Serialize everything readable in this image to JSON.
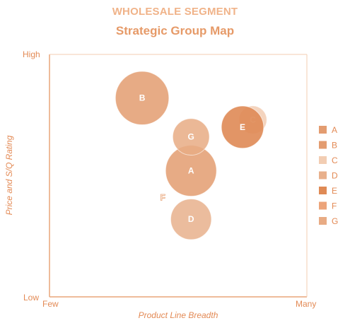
{
  "header": {
    "title": "WHOLESALE SEGMENT",
    "subtitle": "Strategic Group Map"
  },
  "chart_data": {
    "type": "scatter",
    "title": "Strategic Group Map",
    "xlabel": "Product Line Breadth",
    "ylabel": "Price and S/Q Rating",
    "x_tick_labels": [
      "Few",
      "Many"
    ],
    "y_tick_labels": [
      "Low",
      "High"
    ],
    "xlim": [
      0,
      10
    ],
    "ylim": [
      0,
      10
    ],
    "grid": false,
    "legend_position": "right",
    "series": [
      {
        "name": "A",
        "x": 5.5,
        "y": 5.2,
        "size": 1.0,
        "color": "#e39c70",
        "opacity": 0.85
      },
      {
        "name": "B",
        "x": 3.6,
        "y": 8.2,
        "size": 1.05,
        "color": "#e39c70",
        "opacity": 0.85
      },
      {
        "name": "C",
        "x": 7.9,
        "y": 7.3,
        "size": 0.55,
        "color": "#f2cdb3",
        "opacity": 0.85
      },
      {
        "name": "D",
        "x": 5.5,
        "y": 3.2,
        "size": 0.8,
        "color": "#e8b08c",
        "opacity": 0.85
      },
      {
        "name": "E",
        "x": 7.5,
        "y": 7.0,
        "size": 0.83,
        "color": "#df8a55",
        "opacity": 0.9
      },
      {
        "name": "F",
        "x": 4.4,
        "y": 4.1,
        "size": 0.0,
        "color": "#eca47a",
        "opacity": 0.85
      },
      {
        "name": "G",
        "x": 5.5,
        "y": 6.6,
        "size": 0.72,
        "color": "#e8ab84",
        "opacity": 0.85
      }
    ]
  }
}
